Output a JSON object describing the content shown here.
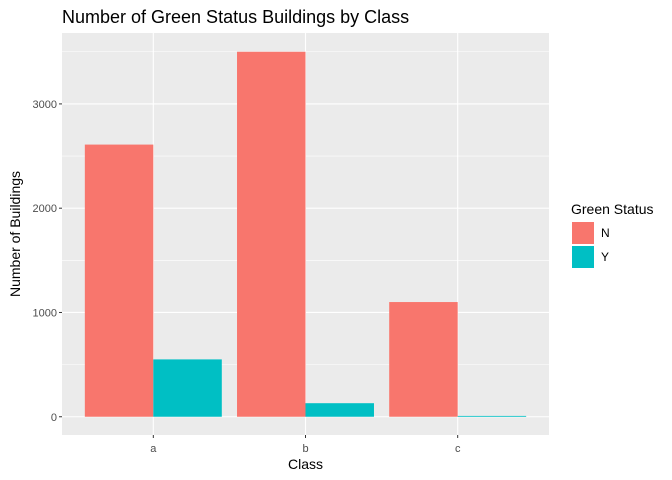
{
  "chart_data": {
    "type": "bar",
    "title": "Number of Green Status Buildings by Class",
    "xlabel": "Class",
    "ylabel": "Number of Buildings",
    "categories": [
      "a",
      "b",
      "c"
    ],
    "series": [
      {
        "name": "N",
        "values": [
          2610,
          3500,
          1100
        ],
        "color": "#F8766D"
      },
      {
        "name": "Y",
        "values": [
          550,
          130,
          8
        ],
        "color": "#00BFC4"
      }
    ],
    "ylim": [
      -175,
      3680
    ],
    "yticks": [
      0,
      1000,
      2000,
      3000
    ],
    "ytick_labels": [
      "0",
      "1000",
      "2000",
      "3000"
    ],
    "grid": true,
    "legend": {
      "title": "Green Status",
      "placement": "right"
    },
    "panel_background": "#EBEBEB",
    "gridline_color": "#FFFFFF"
  }
}
